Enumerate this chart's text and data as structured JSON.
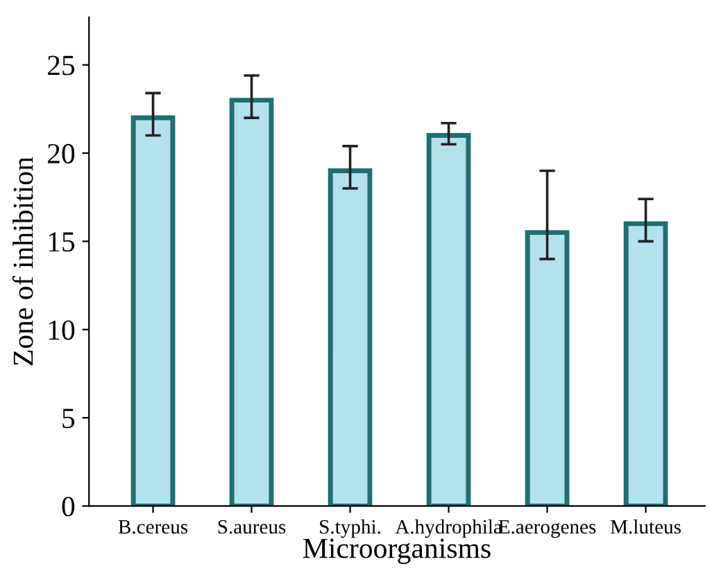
{
  "chart_data": {
    "type": "bar",
    "xlabel": "Microorganisms",
    "ylabel": "Zone of inhibition",
    "categories": [
      "B.cereus",
      "S.aureus",
      "S.typhi.",
      "A.hydrophila",
      "E.aerogenes",
      "M.luteus"
    ],
    "values": [
      22,
      23,
      19,
      21,
      15.5,
      16
    ],
    "errors": [
      [
        21,
        23.4
      ],
      [
        22,
        24.4
      ],
      [
        18,
        20.4
      ],
      [
        20.5,
        21.7
      ],
      [
        14,
        19
      ],
      [
        15,
        17.4
      ]
    ],
    "color": "#b3e2ec",
    "ylim": [
      0,
      27.7
    ],
    "yticks": [
      0,
      5,
      10,
      15,
      20,
      25
    ],
    "grid": false
  }
}
